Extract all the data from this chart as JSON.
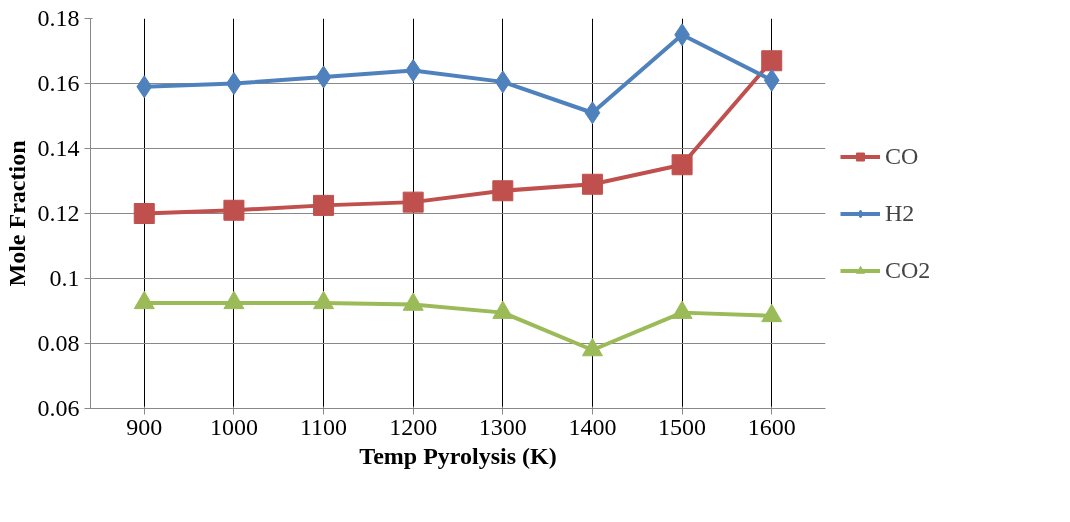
{
  "chart_data": {
    "type": "line",
    "xlabel": "Temp Pyrolysis (K)",
    "ylabel": "Mole Fraction",
    "categories": [
      "900",
      "1000",
      "1100",
      "1200",
      "1300",
      "1400",
      "1500",
      "1600"
    ],
    "series": [
      {
        "name": "CO",
        "color": "#c0504d",
        "marker": "square",
        "values": [
          0.12,
          0.121,
          0.1225,
          0.1235,
          0.127,
          0.129,
          0.135,
          0.167
        ]
      },
      {
        "name": "H2",
        "color": "#4f81bd",
        "marker": "diamond",
        "values": [
          0.159,
          0.16,
          0.162,
          0.164,
          0.1605,
          0.151,
          0.175,
          0.161
        ]
      },
      {
        "name": "CO2",
        "color": "#9bbb59",
        "marker": "triangle",
        "values": [
          0.0925,
          0.0925,
          0.0925,
          0.092,
          0.0895,
          0.078,
          0.0895,
          0.0885
        ]
      }
    ],
    "ylim": [
      0.06,
      0.18
    ],
    "yticks": [
      {
        "value": 0.06,
        "label": "0.06"
      },
      {
        "value": 0.08,
        "label": "0.08"
      },
      {
        "value": 0.1,
        "label": "0.1"
      },
      {
        "value": 0.12,
        "label": "0.12"
      },
      {
        "value": 0.14,
        "label": "0.14"
      },
      {
        "value": 0.16,
        "label": "0.16"
      },
      {
        "value": 0.18,
        "label": "0.18"
      }
    ],
    "grid": true,
    "legend": "right",
    "line_style": "solid"
  }
}
